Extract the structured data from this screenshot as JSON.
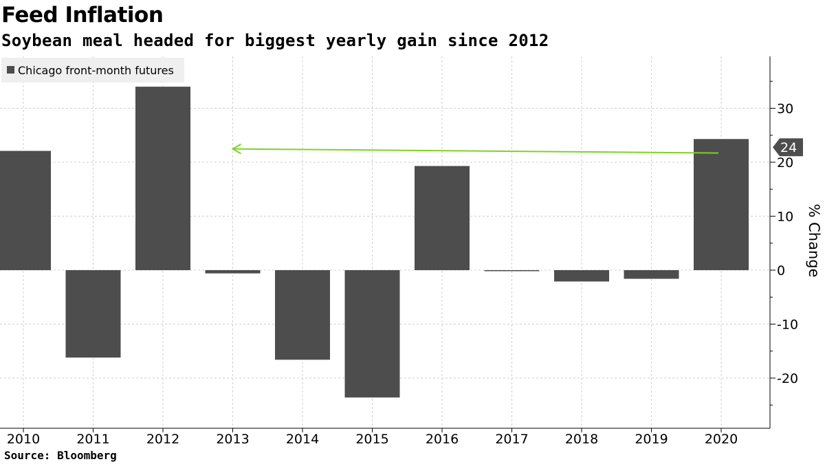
{
  "title": "Feed Inflation",
  "subtitle": "Soybean meal headed for biggest yearly gain since 2012",
  "source": "Source: Bloomberg",
  "chart_data": {
    "type": "bar",
    "categories": [
      "2010",
      "2011",
      "2012",
      "2013",
      "2014",
      "2015",
      "2016",
      "2017",
      "2018",
      "2019",
      "2020"
    ],
    "series": [
      {
        "name": "Chicago front-month futures",
        "values": [
          22.1,
          -16.2,
          34.0,
          -0.6,
          -16.6,
          -23.6,
          19.3,
          -0.1,
          -2.1,
          -1.6,
          24.3
        ],
        "color": "#4d4d4d"
      }
    ],
    "ylabel": "% Change",
    "yticks": [
      -20,
      -10,
      0,
      10,
      20,
      30
    ],
    "ylim": [
      -29,
      39
    ],
    "grid": true,
    "legend_position": "top-left",
    "y_axis_side": "right",
    "last_value_label": "24",
    "annotation": {
      "type": "arrow",
      "from_category": "2020",
      "to_category": "2013",
      "y": 24,
      "color": "#7ed321"
    }
  }
}
